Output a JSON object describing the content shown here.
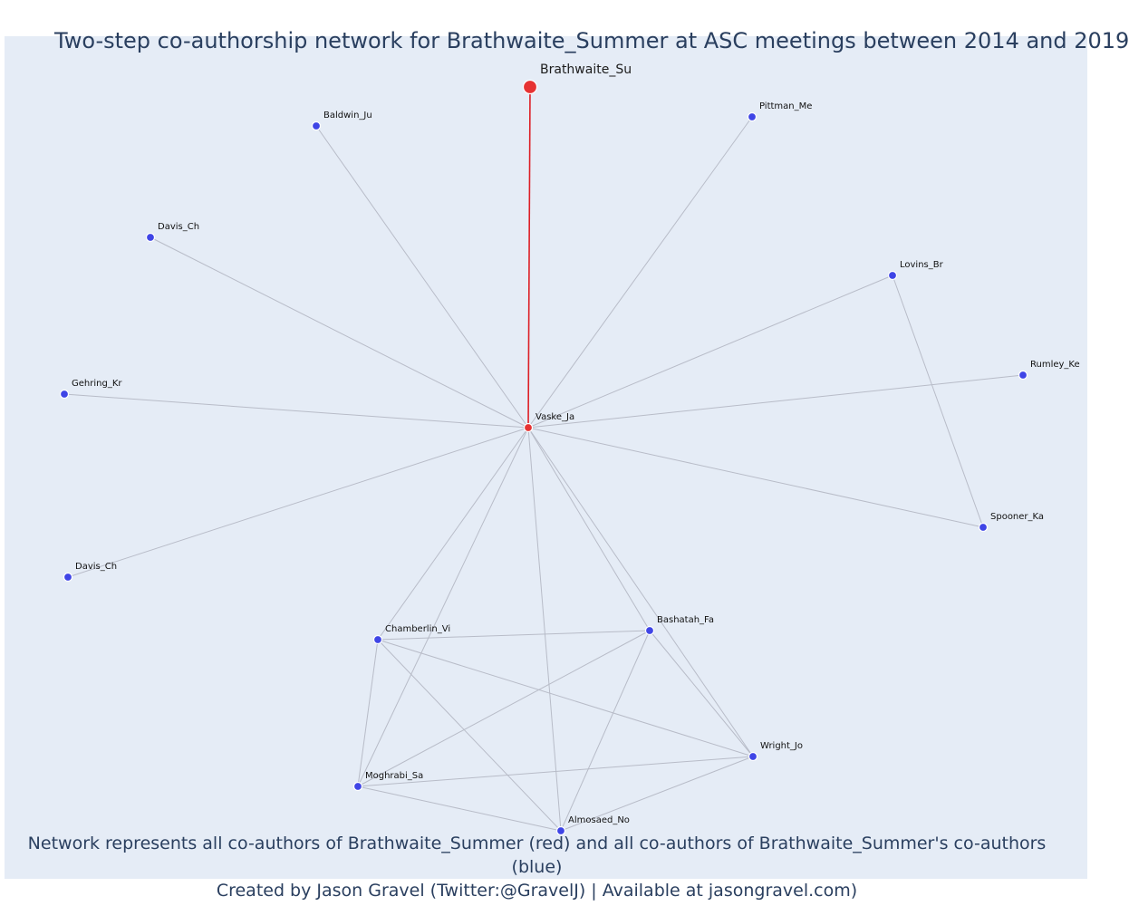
{
  "title": "Two-step co-authorship network for Brathwaite_Summer at ASC meetings between 2014 and 2019",
  "caption": {
    "line1": "Network represents all co-authors of Brathwaite_Summer (red) and all co-authors of Brathwaite_Summer's co-authors (blue)",
    "line2": "Created by Jason Gravel (Twitter:@GravelJ) | Available at jasongravel.com)"
  },
  "colors": {
    "background": "#e5ecf6",
    "first_step": "#e63232",
    "second_step": "#3f45e6",
    "ego_edge": "#dd1f26",
    "edge": "#b8bcc8",
    "text": "#2a3f5f"
  },
  "network": {
    "nodes": [
      {
        "id": "brathwaite",
        "label": "Brathwaite_Su",
        "group": "focal"
      },
      {
        "id": "vaske",
        "label": "Vaske_Ja",
        "group": "co-author"
      },
      {
        "id": "baldwin",
        "label": "Baldwin_Ju",
        "group": "second-step"
      },
      {
        "id": "pittman",
        "label": "Pittman_Me",
        "group": "second-step"
      },
      {
        "id": "davis1",
        "label": "Davis_Ch",
        "group": "second-step"
      },
      {
        "id": "lovins",
        "label": "Lovins_Br",
        "group": "second-step"
      },
      {
        "id": "rumley",
        "label": "Rumley_Ke",
        "group": "second-step"
      },
      {
        "id": "gehring",
        "label": "Gehring_Kr",
        "group": "second-step"
      },
      {
        "id": "spooner",
        "label": "Spooner_Ka",
        "group": "second-step"
      },
      {
        "id": "davis2",
        "label": "Davis_Ch",
        "group": "second-step"
      },
      {
        "id": "chamberlin",
        "label": "Chamberlin_Vi",
        "group": "second-step"
      },
      {
        "id": "bashatah",
        "label": "Bashatah_Fa",
        "group": "second-step"
      },
      {
        "id": "wright",
        "label": "Wright_Jo",
        "group": "second-step"
      },
      {
        "id": "moghrabi",
        "label": "Moghrabi_Sa",
        "group": "second-step"
      },
      {
        "id": "almosaed",
        "label": "Almosaed_No",
        "group": "second-step"
      }
    ],
    "edges": [
      [
        "brathwaite",
        "vaske"
      ],
      [
        "vaske",
        "baldwin"
      ],
      [
        "vaske",
        "pittman"
      ],
      [
        "vaske",
        "davis1"
      ],
      [
        "vaske",
        "lovins"
      ],
      [
        "vaske",
        "rumley"
      ],
      [
        "vaske",
        "gehring"
      ],
      [
        "vaske",
        "spooner"
      ],
      [
        "vaske",
        "davis2"
      ],
      [
        "vaske",
        "chamberlin"
      ],
      [
        "vaske",
        "bashatah"
      ],
      [
        "vaske",
        "wright"
      ],
      [
        "vaske",
        "moghrabi"
      ],
      [
        "vaske",
        "almosaed"
      ],
      [
        "lovins",
        "spooner"
      ],
      [
        "chamberlin",
        "bashatah"
      ],
      [
        "chamberlin",
        "moghrabi"
      ],
      [
        "chamberlin",
        "almosaed"
      ],
      [
        "chamberlin",
        "wright"
      ],
      [
        "bashatah",
        "moghrabi"
      ],
      [
        "bashatah",
        "almosaed"
      ],
      [
        "bashatah",
        "wright"
      ],
      [
        "moghrabi",
        "wright"
      ],
      [
        "moghrabi",
        "almosaed"
      ],
      [
        "almosaed",
        "wright"
      ]
    ]
  }
}
